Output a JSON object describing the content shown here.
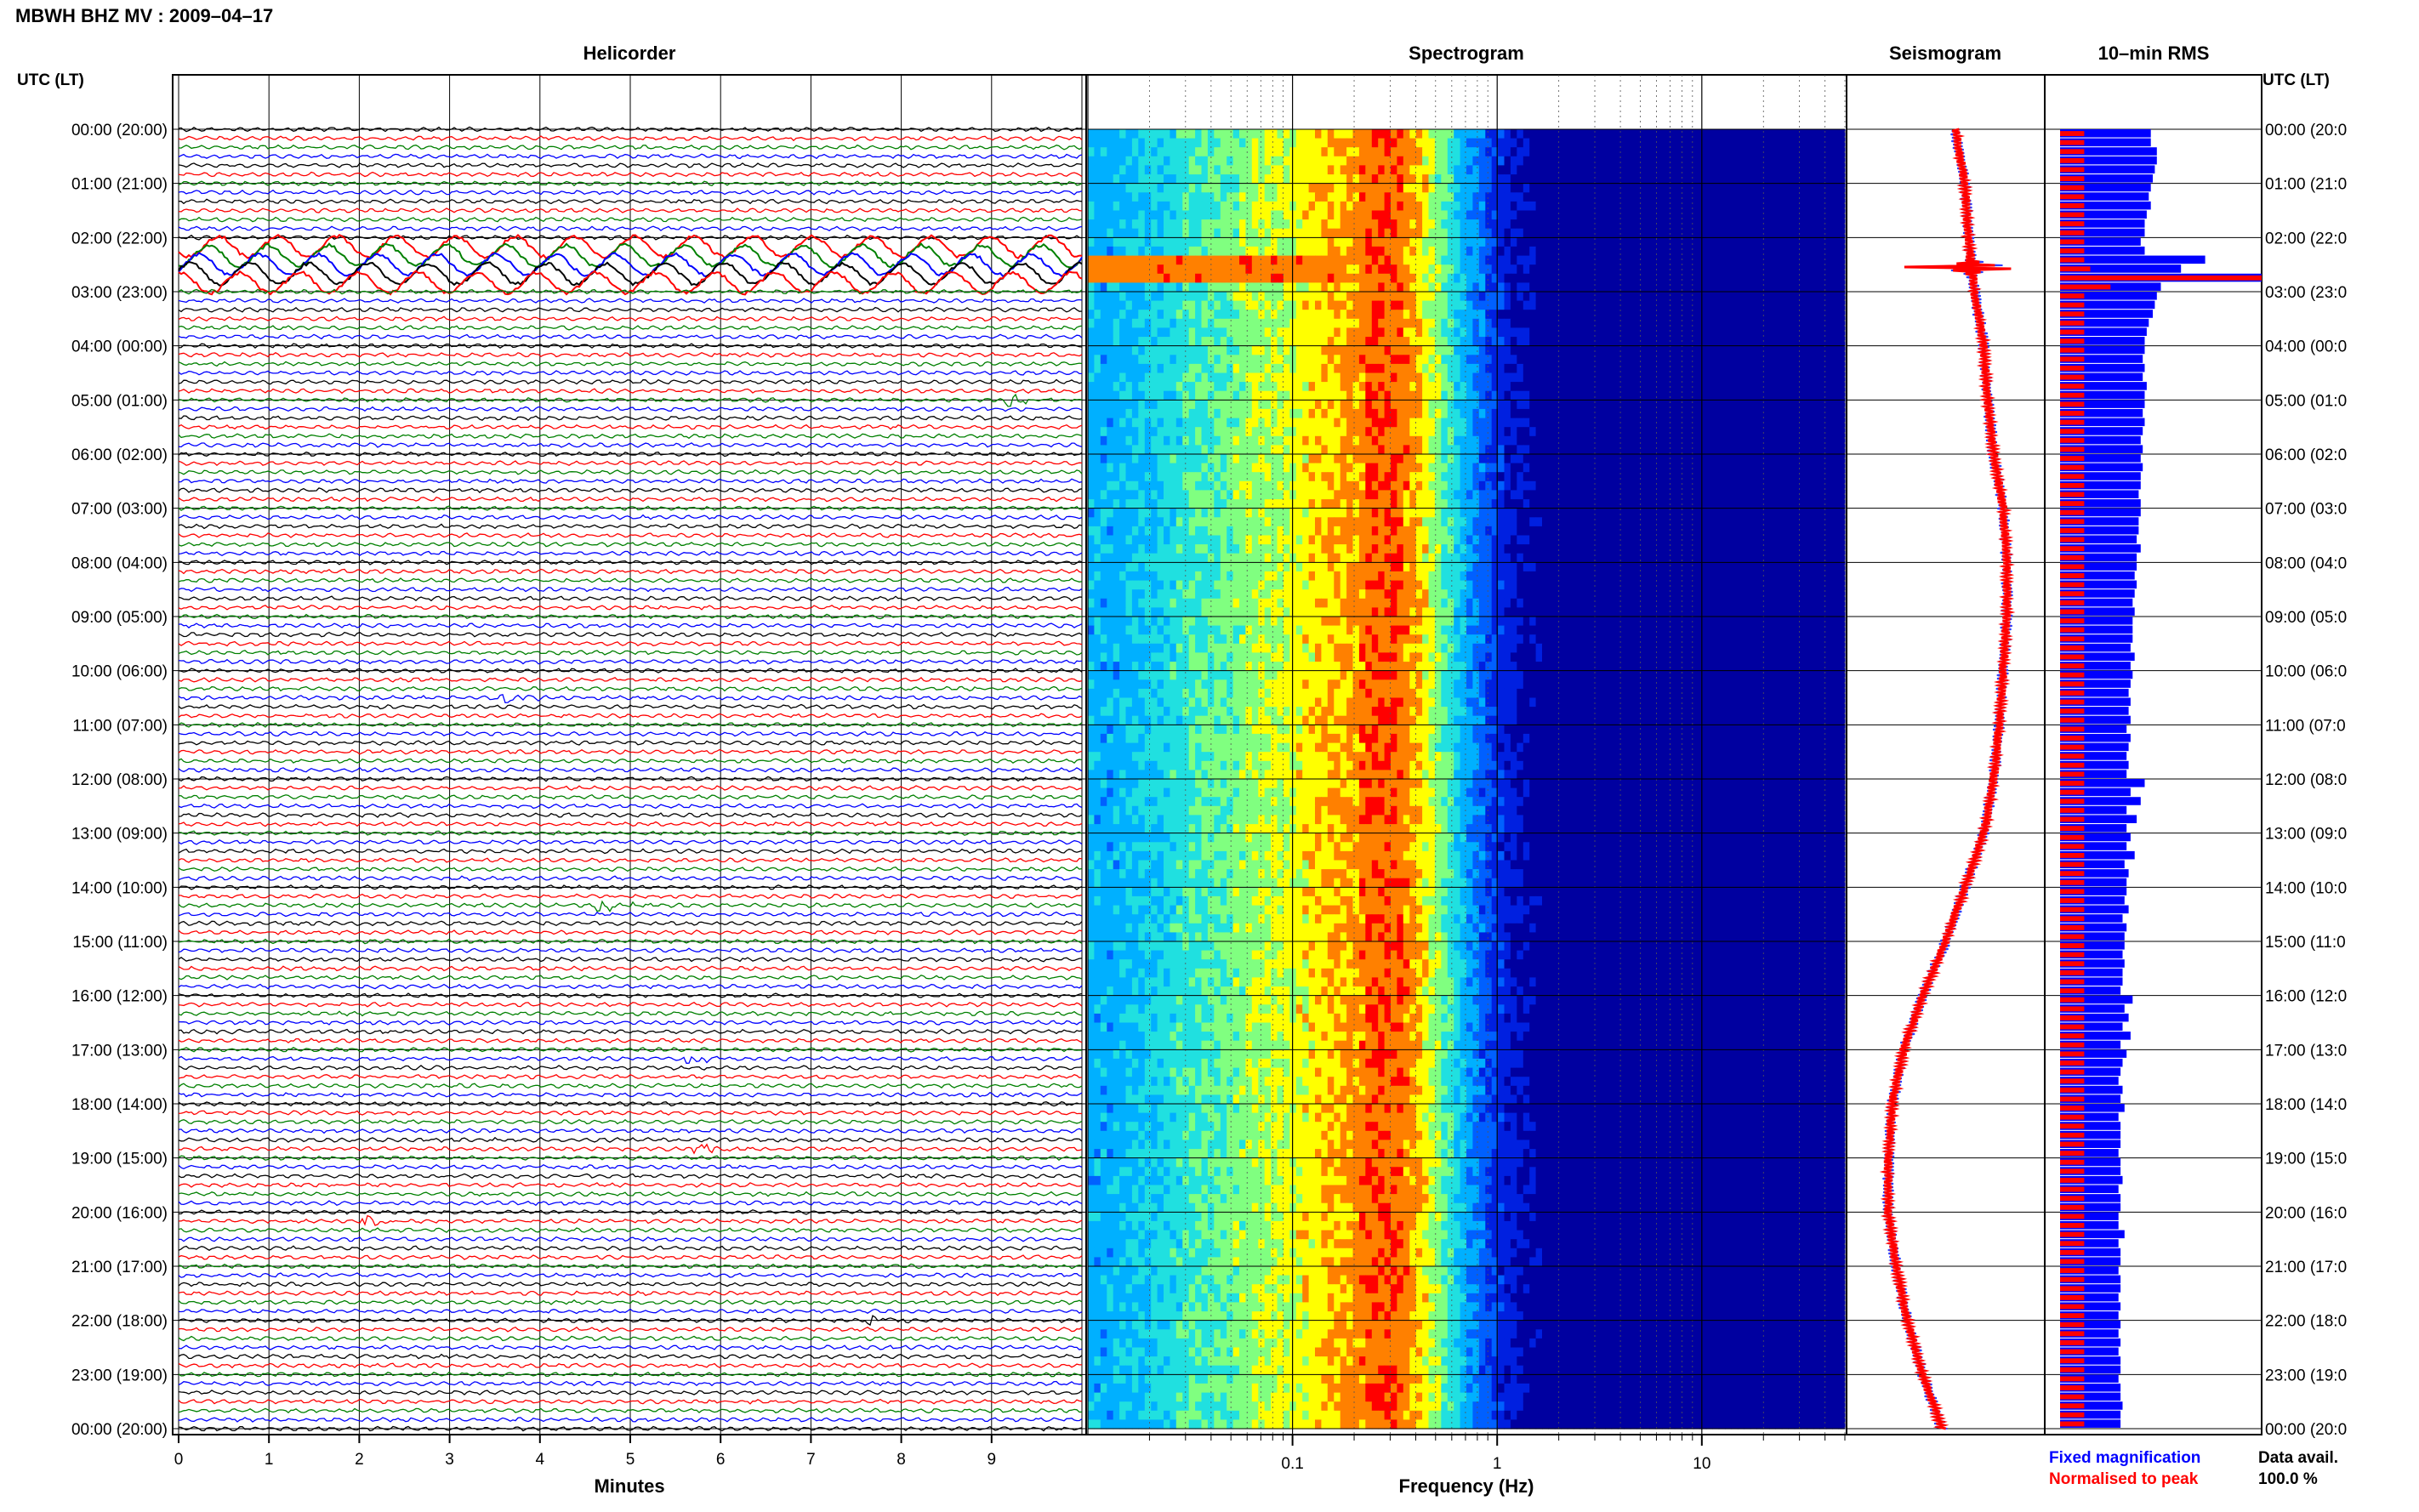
{
  "figure": {
    "station_title": "MBWH BHZ MV : 2009–04–17",
    "left_axis_header": "UTC (LT)",
    "right_axis_header": "UTC (LT)",
    "hour_labels": [
      "00:00 (20:00)",
      "01:00 (21:00)",
      "02:00 (22:00)",
      "03:00 (23:00)",
      "04:00 (00:00)",
      "05:00 (01:00)",
      "06:00 (02:00)",
      "07:00 (03:00)",
      "08:00 (04:00)",
      "09:00 (05:00)",
      "10:00 (06:00)",
      "11:00 (07:00)",
      "12:00 (08:00)",
      "13:00 (09:00)",
      "14:00 (10:00)",
      "15:00 (11:00)",
      "16:00 (12:00)",
      "17:00 (13:00)",
      "18:00 (14:00)",
      "19:00 (15:00)",
      "20:00 (16:00)",
      "21:00 (17:00)",
      "22:00 (18:00)",
      "23:00 (19:00)",
      "00:00 (20:00)"
    ],
    "right_hour_labels": [
      "00:00 (20:0",
      "01:00 (21:0",
      "02:00 (22:0",
      "03:00 (23:0",
      "04:00 (00:0",
      "05:00 (01:0",
      "06:00 (02:0",
      "07:00 (03:0",
      "08:00 (04:0",
      "09:00 (05:0",
      "10:00 (06:0",
      "11:00 (07:0",
      "12:00 (08:0",
      "13:00 (09:0",
      "14:00 (10:0",
      "15:00 (11:0",
      "16:00 (12:0",
      "17:00 (13:0",
      "18:00 (14:0",
      "19:00 (15:0",
      "20:00 (16:0",
      "21:00 (17:0",
      "22:00 (18:0",
      "23:00 (19:0",
      "00:00 (20:0"
    ],
    "legend_fixed": "Fixed magnification",
    "legend_normalised": "Normalised to peak",
    "data_avail_label": "Data avail.",
    "data_avail_value": "100.0 %",
    "colors": {
      "fixed": "#0000ff",
      "normalised": "#ff0000"
    }
  },
  "chart_data": [
    {
      "panel": "helicorder",
      "type": "line",
      "title": "Helicorder",
      "xlabel": "Minutes",
      "x_ticks": [
        "0",
        "1",
        "2",
        "3",
        "4",
        "5",
        "6",
        "7",
        "8",
        "9"
      ],
      "xlim": [
        0,
        10
      ],
      "ylim_hours": [
        0,
        24
      ],
      "trace_colors": [
        "#000000",
        "#ff0000",
        "#008000",
        "#0000ff"
      ],
      "traces_per_hour": 6,
      "large_event_hour": 2.5,
      "small_events": [
        {
          "hour": 5.0,
          "minute": 9.2
        },
        {
          "hour": 10.5,
          "minute": 3.6
        },
        {
          "hour": 14.3,
          "minute": 4.7
        },
        {
          "hour": 17.2,
          "minute": 5.7
        },
        {
          "hour": 18.8,
          "minute": 5.8
        },
        {
          "hour": 20.1,
          "minute": 2.1
        },
        {
          "hour": 22.0,
          "minute": 7.7
        }
      ]
    },
    {
      "panel": "spectrogram",
      "type": "heatmap",
      "title": "Spectrogram",
      "xlabel": "Frequency (Hz)",
      "x_scale": "log",
      "x_ticks": [
        "0.1",
        "1",
        "10"
      ],
      "xlim": [
        0.01,
        50
      ],
      "colormap": [
        "#0000a0",
        "#0020e0",
        "#0060ff",
        "#00b0ff",
        "#20e0e0",
        "#80ff80",
        "#ffff00",
        "#ff8000",
        "#ff0000"
      ],
      "hot_event_hour": 2.5
    },
    {
      "panel": "seismogram",
      "type": "line",
      "title": "Seismogram",
      "hour_offsets": [
        0,
        1,
        2,
        3,
        4,
        5,
        6,
        7,
        8,
        9,
        10,
        11,
        12,
        13,
        14,
        15,
        16,
        17,
        18,
        19,
        20,
        21,
        22,
        23,
        24
      ],
      "center_offset": [
        0.55,
        0.6,
        0.62,
        0.65,
        0.7,
        0.72,
        0.75,
        0.8,
        0.82,
        0.82,
        0.8,
        0.78,
        0.75,
        0.7,
        0.6,
        0.5,
        0.38,
        0.28,
        0.22,
        0.2,
        0.2,
        0.24,
        0.3,
        0.38,
        0.48
      ],
      "spike_hour": 2.55
    },
    {
      "panel": "rms",
      "type": "bar",
      "title": "10–min RMS",
      "orientation": "horizontal",
      "fixed_rms": [
        0.45,
        0.45,
        0.48,
        0.48,
        0.47,
        0.46,
        0.45,
        0.44,
        0.45,
        0.43,
        0.42,
        0.42,
        0.4,
        0.42,
        0.72,
        0.6,
        1.0,
        0.5,
        0.48,
        0.47,
        0.46,
        0.44,
        0.43,
        0.42,
        0.42,
        0.41,
        0.42,
        0.41,
        0.43,
        0.42,
        0.42,
        0.41,
        0.42,
        0.41,
        0.4,
        0.41,
        0.4,
        0.41,
        0.4,
        0.4,
        0.39,
        0.4,
        0.4,
        0.39,
        0.39,
        0.38,
        0.4,
        0.38,
        0.38,
        0.37,
        0.38,
        0.37,
        0.36,
        0.37,
        0.36,
        0.36,
        0.36,
        0.35,
        0.37,
        0.35,
        0.36,
        0.35,
        0.34,
        0.35,
        0.34,
        0.35,
        0.33,
        0.35,
        0.34,
        0.33,
        0.34,
        0.33,
        0.42,
        0.35,
        0.4,
        0.33,
        0.38,
        0.33,
        0.35,
        0.33,
        0.37,
        0.32,
        0.34,
        0.33,
        0.33,
        0.32,
        0.34,
        0.31,
        0.33,
        0.32,
        0.32,
        0.31,
        0.32,
        0.31,
        0.31,
        0.3,
        0.36,
        0.32,
        0.34,
        0.31,
        0.35,
        0.3,
        0.33,
        0.31,
        0.3,
        0.29,
        0.31,
        0.3,
        0.32,
        0.29,
        0.3,
        0.3,
        0.3,
        0.29,
        0.3,
        0.3,
        0.31,
        0.29,
        0.3,
        0.3,
        0.29,
        0.29,
        0.32,
        0.29,
        0.3,
        0.3,
        0.29,
        0.3,
        0.3,
        0.29,
        0.3,
        0.29,
        0.3,
        0.29,
        0.3,
        0.29,
        0.3,
        0.3,
        0.29,
        0.3,
        0.3,
        0.31,
        0.3,
        0.3
      ],
      "normalised_rms": [
        0.12,
        0.12,
        0.12,
        0.12,
        0.12,
        0.12,
        0.12,
        0.12,
        0.12,
        0.12,
        0.12,
        0.12,
        0.12,
        0.12,
        0.12,
        0.15,
        1.0,
        0.25,
        0.12,
        0.12,
        0.12,
        0.12,
        0.12,
        0.12,
        0.12,
        0.12,
        0.12,
        0.12,
        0.12,
        0.12,
        0.12,
        0.12,
        0.12,
        0.12,
        0.12,
        0.12,
        0.12,
        0.12,
        0.12,
        0.12,
        0.12,
        0.12,
        0.12,
        0.12,
        0.12,
        0.12,
        0.12,
        0.12,
        0.12,
        0.12,
        0.12,
        0.12,
        0.12,
        0.12,
        0.12,
        0.12,
        0.12,
        0.12,
        0.12,
        0.12,
        0.12,
        0.12,
        0.12,
        0.12,
        0.12,
        0.12,
        0.12,
        0.12,
        0.12,
        0.12,
        0.12,
        0.12,
        0.12,
        0.12,
        0.12,
        0.12,
        0.12,
        0.12,
        0.12,
        0.12,
        0.12,
        0.12,
        0.12,
        0.12,
        0.12,
        0.12,
        0.12,
        0.12,
        0.12,
        0.12,
        0.12,
        0.12,
        0.12,
        0.12,
        0.12,
        0.12,
        0.12,
        0.12,
        0.12,
        0.12,
        0.12,
        0.12,
        0.12,
        0.12,
        0.12,
        0.12,
        0.12,
        0.12,
        0.12,
        0.12,
        0.12,
        0.12,
        0.12,
        0.12,
        0.12,
        0.12,
        0.12,
        0.12,
        0.12,
        0.12,
        0.12,
        0.12,
        0.12,
        0.12,
        0.12,
        0.12,
        0.12,
        0.12,
        0.12,
        0.12,
        0.12,
        0.12,
        0.12,
        0.12,
        0.12,
        0.12,
        0.12,
        0.12,
        0.12,
        0.12,
        0.12,
        0.12,
        0.12,
        0.12
      ]
    }
  ]
}
